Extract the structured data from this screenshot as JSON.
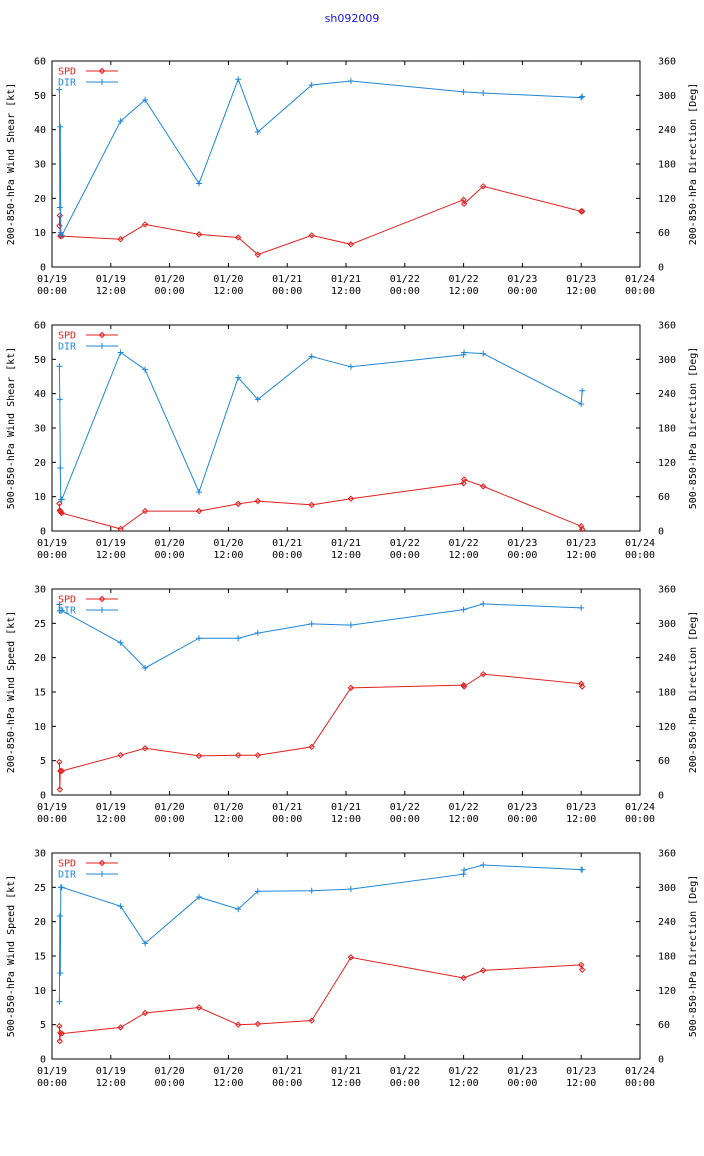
{
  "page": {
    "title": "sh092009"
  },
  "colors": {
    "spd": "#e02020",
    "dir": "#1f87d6",
    "axis": "#000000"
  },
  "x_ticks": [
    [
      "01/19",
      "00:00"
    ],
    [
      "01/19",
      "12:00"
    ],
    [
      "01/20",
      "00:00"
    ],
    [
      "01/20",
      "12:00"
    ],
    [
      "01/21",
      "00:00"
    ],
    [
      "01/21",
      "12:00"
    ],
    [
      "01/22",
      "00:00"
    ],
    [
      "01/22",
      "12:00"
    ],
    [
      "01/23",
      "00:00"
    ],
    [
      "01/23",
      "12:00"
    ],
    [
      "01/24",
      "00:00"
    ]
  ],
  "chart_data": [
    {
      "type": "line",
      "ylabel": "200-850-hPa Wind Shear [kt]",
      "y2label": "200-850-hPa Direction [Deg]",
      "xlim": [
        0,
        120
      ],
      "ylim": [
        0,
        60
      ],
      "y2lim": [
        0,
        360
      ],
      "yticks": [
        0,
        10,
        20,
        30,
        40,
        50,
        60
      ],
      "y2ticks": [
        0,
        60,
        120,
        180,
        240,
        300,
        360
      ],
      "legend_position": "top-left",
      "series": [
        {
          "name": "SPD",
          "axis": "left",
          "x": [
            1.5,
            1.6,
            1.7,
            1.8,
            2.0,
            14.0,
            19.0,
            30.0,
            38.0,
            42.0,
            53.0,
            61.0,
            84.0,
            84.1,
            88.0,
            108.0,
            108.2
          ],
          "y": [
            12,
            15,
            9,
            9.2,
            9,
            8.1,
            12.4,
            9.5,
            8.6,
            3.6,
            9.2,
            6.6,
            19.6,
            18.4,
            23.5,
            16.2,
            16.2
          ]
        },
        {
          "name": "DIR",
          "axis": "right",
          "x": [
            1.5,
            1.6,
            1.7,
            1.8,
            1.9,
            2.0,
            14.0,
            19.0,
            30.0,
            38.0,
            42.0,
            53.0,
            61.0,
            84.0,
            88.0,
            108.0,
            108.2
          ],
          "y": [
            310,
            104,
            245,
            60,
            55,
            55,
            255,
            292,
            146,
            328,
            236,
            318,
            325,
            306,
            304,
            296,
            298
          ]
        }
      ]
    },
    {
      "type": "line",
      "ylabel": "500-850-hPa Wind Shear [kt]",
      "y2label": "500-850-hPa Direction [Deg]",
      "xlim": [
        0,
        120
      ],
      "ylim": [
        0,
        60
      ],
      "y2lim": [
        0,
        360
      ],
      "yticks": [
        0,
        10,
        20,
        30,
        40,
        50,
        60
      ],
      "y2ticks": [
        0,
        60,
        120,
        180,
        240,
        300,
        360
      ],
      "legend_position": "top-left",
      "series": [
        {
          "name": "SPD",
          "axis": "left",
          "x": [
            1.5,
            1.6,
            1.7,
            1.8,
            2.0,
            14.0,
            19.0,
            30.0,
            38.0,
            42.0,
            53.0,
            61.0,
            84.0,
            84.1,
            88.0,
            108.0,
            108.2
          ],
          "y": [
            8,
            6,
            5.8,
            5.5,
            5.2,
            0.6,
            5.8,
            5.8,
            7.9,
            8.7,
            7.6,
            9.4,
            13.9,
            15,
            13,
            1.4,
            0.5
          ]
        },
        {
          "name": "DIR",
          "axis": "right",
          "x": [
            1.5,
            1.6,
            1.7,
            1.8,
            2.0,
            14.0,
            19.0,
            30.0,
            38.0,
            42.0,
            53.0,
            61.0,
            84.0,
            84.1,
            88.0,
            108.0,
            108.2
          ],
          "y": [
            288,
            230,
            110,
            55,
            55,
            312,
            282,
            68,
            268,
            230,
            305,
            287,
            308,
            312,
            310,
            222,
            245
          ]
        }
      ]
    },
    {
      "type": "line",
      "ylabel": "200-850-hPa Wind Speed [kt]",
      "y2label": "200-850-hPa Direction [Deg]",
      "xlim": [
        0,
        120
      ],
      "ylim": [
        0,
        30
      ],
      "y2lim": [
        0,
        360
      ],
      "yticks": [
        0,
        5,
        10,
        15,
        20,
        25,
        30
      ],
      "y2ticks": [
        0,
        60,
        120,
        180,
        240,
        300,
        360
      ],
      "legend_position": "top-left",
      "series": [
        {
          "name": "SPD",
          "axis": "left",
          "x": [
            1.5,
            1.6,
            1.7,
            2.0,
            14.0,
            19.0,
            30.0,
            38.0,
            42.0,
            53.0,
            61.0,
            84.0,
            84.1,
            88.0,
            108.0,
            108.2
          ],
          "y": [
            4.8,
            0.8,
            3.5,
            3.5,
            5.8,
            6.8,
            5.7,
            5.8,
            5.8,
            7.0,
            15.6,
            16.0,
            15.8,
            17.6,
            16.2,
            15.8
          ]
        },
        {
          "name": "DIR",
          "axis": "right",
          "x": [
            1.5,
            1.6,
            2.0,
            14.0,
            19.0,
            30.0,
            38.0,
            42.0,
            53.0,
            61.0,
            84.0,
            88.0,
            108.0
          ],
          "y": [
            333,
            322,
            322,
            266,
            222,
            274,
            274,
            283,
            299,
            297,
            324,
            334,
            327
          ]
        }
      ]
    },
    {
      "type": "line",
      "ylabel": "500-850-hPa Wind Speed [kt]",
      "y2label": "500-850-hPa Direction [Deg]",
      "xlim": [
        0,
        120
      ],
      "ylim": [
        0,
        30
      ],
      "y2lim": [
        0,
        360
      ],
      "yticks": [
        0,
        5,
        10,
        15,
        20,
        25,
        30
      ],
      "y2ticks": [
        0,
        60,
        120,
        180,
        240,
        300,
        360
      ],
      "legend_position": "top-left",
      "series": [
        {
          "name": "SPD",
          "axis": "left",
          "x": [
            1.5,
            1.6,
            1.7,
            2.0,
            14.0,
            19.0,
            30.0,
            38.0,
            42.0,
            53.0,
            61.0,
            84.0,
            88.0,
            108.0,
            108.2
          ],
          "y": [
            4.8,
            2.6,
            3.8,
            3.7,
            4.6,
            6.7,
            7.5,
            5.0,
            5.1,
            5.6,
            14.8,
            11.8,
            12.9,
            13.7,
            13.0
          ]
        },
        {
          "name": "DIR",
          "axis": "right",
          "x": [
            1.5,
            1.6,
            1.7,
            1.8,
            2.0,
            14.0,
            19.0,
            30.0,
            38.0,
            42.0,
            53.0,
            61.0,
            84.0,
            84.1,
            88.0,
            108.0,
            108.2
          ],
          "y": [
            100,
            250,
            150,
            300,
            300,
            267,
            202,
            283,
            262,
            293,
            294,
            297,
            323,
            330,
            339,
            331,
            331
          ]
        }
      ]
    }
  ]
}
